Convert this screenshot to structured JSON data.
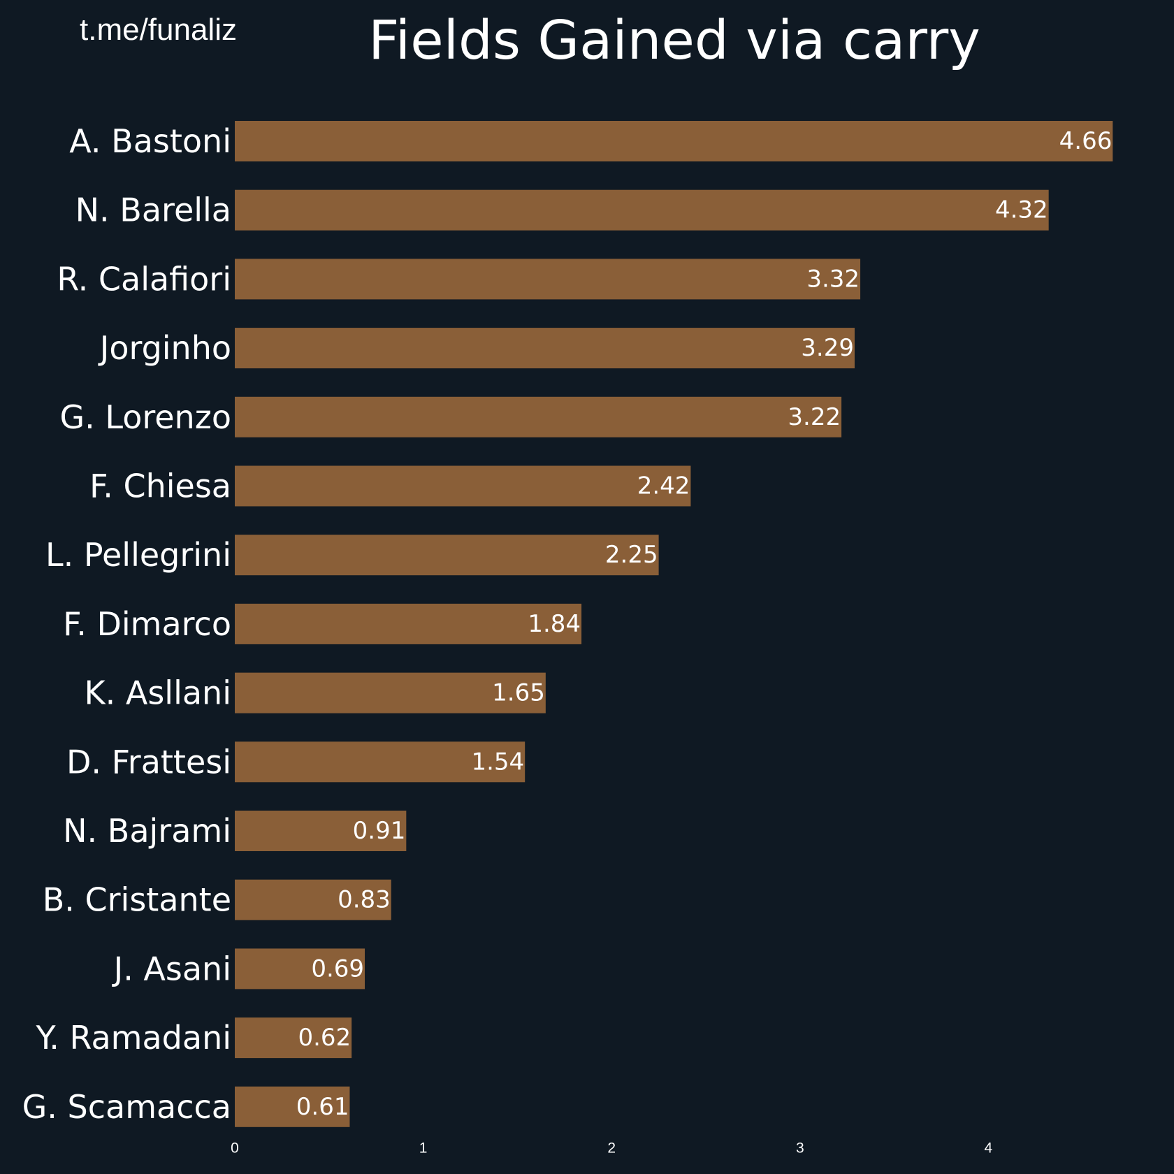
{
  "watermark": "t.me/funaliz",
  "chart_data": {
    "type": "bar",
    "orientation": "horizontal",
    "title": "Fields Gained via carry",
    "xlabel": "",
    "ylabel": "",
    "categories": [
      "A. Bastoni",
      "N. Barella",
      "R. Calafiori",
      "Jorginho",
      "G. Lorenzo",
      "F. Chiesa",
      "L. Pellegrini",
      "F. Dimarco",
      "K. Asllani",
      "D. Frattesi",
      "N. Bajrami",
      "B. Cristante",
      "J. Asani",
      "Y. Ramadani",
      "G. Scamacca"
    ],
    "values": [
      4.66,
      4.32,
      3.32,
      3.29,
      3.22,
      2.42,
      2.25,
      1.84,
      1.65,
      1.54,
      0.91,
      0.83,
      0.69,
      0.62,
      0.61
    ],
    "value_labels": [
      "4.66",
      "4.32",
      "3.32",
      "3.29",
      "3.22",
      "2.42",
      "2.25",
      "1.84",
      "1.65",
      "1.54",
      "0.91",
      "0.83",
      "0.69",
      "0.62",
      "0.61"
    ],
    "xticks": [
      0,
      1,
      2,
      3,
      4
    ],
    "xtick_labels": [
      "0",
      "1",
      "2",
      "3",
      "4"
    ],
    "xlim": [
      0,
      4.9
    ],
    "grid": false,
    "legend": "none",
    "colors": {
      "background": "#0f1923",
      "bar": "#8a5f38",
      "text": "#ffffff"
    }
  }
}
